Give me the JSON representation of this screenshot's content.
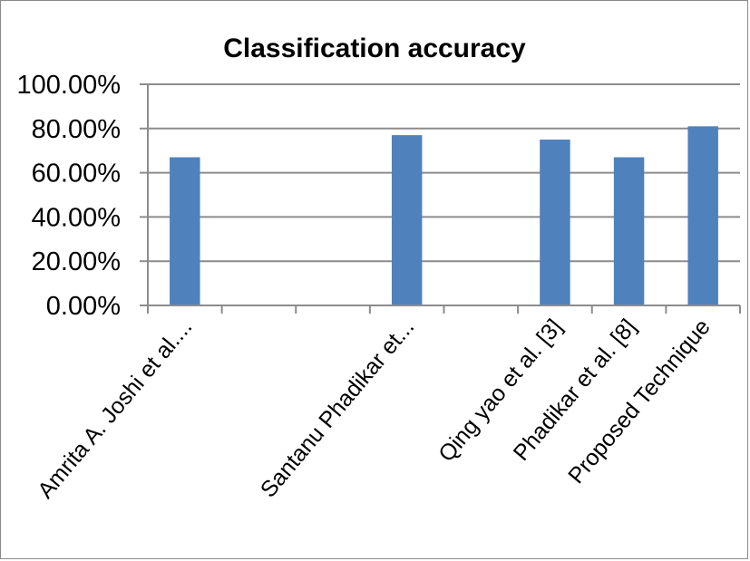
{
  "chart_data": {
    "type": "bar",
    "title": "Classification accuracy",
    "categories": [
      "Amrita  A. Joshi et al....",
      "",
      "",
      "Santanu Phadikar et...",
      "",
      "Qing  yao et al. [3]",
      "Phadikar et al. [8]",
      "Proposed Technique"
    ],
    "values": [
      67,
      null,
      null,
      77,
      null,
      75,
      67,
      81
    ],
    "ylim": [
      0,
      100
    ],
    "yticks": [
      0,
      20,
      40,
      60,
      80,
      100
    ],
    "ytick_labels": [
      "0.00%",
      "20.00%",
      "40.00%",
      "60.00%",
      "80.00%",
      "100.00%"
    ],
    "bar_color": "#4f81bd",
    "grid": true,
    "legend": "none"
  }
}
